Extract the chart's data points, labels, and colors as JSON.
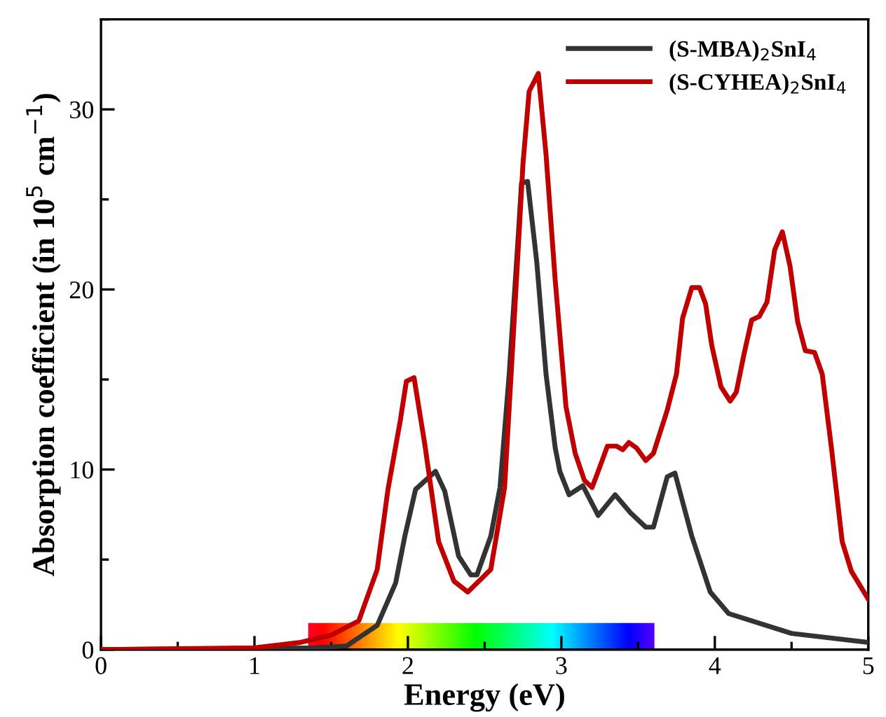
{
  "chart_data": {
    "type": "line",
    "xlabel": "Energy (eV)",
    "ylabel": "Absorption coefficient (in 10$^{5}$ cm$^{−1}$)",
    "xlim": [
      0,
      5
    ],
    "ylim": [
      0,
      35
    ],
    "xticks": [
      0,
      1,
      2,
      3,
      4,
      5
    ],
    "yticks": [
      0,
      10,
      20,
      30
    ],
    "grid": false,
    "legend": "top right",
    "marker": "none",
    "line_style": "solid",
    "series": [
      {
        "name": "(S-MBA)$_{2}$SnI$_{4}$",
        "color": "#333333",
        "x": [
          0,
          1.0,
          1.4,
          1.6,
          1.8,
          1.92,
          1.98,
          2.05,
          2.18,
          2.24,
          2.33,
          2.41,
          2.45,
          2.54,
          2.6,
          2.66,
          2.72,
          2.74,
          2.78,
          2.84,
          2.9,
          2.96,
          2.99,
          3.05,
          3.14,
          3.24,
          3.35,
          3.45,
          3.55,
          3.6,
          3.69,
          3.74,
          3.85,
          3.97,
          4.09,
          4.5,
          5.0
        ],
        "values": [
          0,
          0.05,
          0.1,
          0.2,
          1.35,
          3.7,
          6.3,
          8.9,
          9.9,
          8.8,
          5.2,
          4.15,
          4.15,
          6.3,
          9.0,
          15.3,
          23.1,
          25.9,
          26.0,
          21.5,
          15.3,
          11.2,
          9.9,
          8.6,
          9.1,
          7.45,
          8.6,
          7.6,
          6.8,
          6.8,
          9.6,
          9.8,
          6.3,
          3.2,
          2.0,
          0.9,
          0.4
        ]
      },
      {
        "name": "(S-CYHEA)$_{2}$SnI$_{4}$",
        "color": "#c00000",
        "x": [
          0,
          1.0,
          1.3,
          1.5,
          1.68,
          1.8,
          1.87,
          1.95,
          1.99,
          2.04,
          2.11,
          2.2,
          2.3,
          2.39,
          2.48,
          2.54,
          2.63,
          2.69,
          2.75,
          2.79,
          2.85,
          2.9,
          2.96,
          3.03,
          3.09,
          3.15,
          3.2,
          3.24,
          3.3,
          3.36,
          3.4,
          3.44,
          3.49,
          3.55,
          3.6,
          3.69,
          3.75,
          3.79,
          3.85,
          3.9,
          3.94,
          3.98,
          4.04,
          4.1,
          4.14,
          4.19,
          4.24,
          4.29,
          4.34,
          4.39,
          4.44,
          4.49,
          4.54,
          4.59,
          4.65,
          4.7,
          4.76,
          4.83,
          4.89,
          5.0
        ],
        "values": [
          0,
          0.1,
          0.4,
          0.8,
          1.6,
          4.45,
          8.9,
          12.7,
          14.9,
          15.1,
          11.4,
          6.0,
          3.8,
          3.2,
          3.95,
          4.45,
          9.0,
          17.9,
          27.0,
          31.0,
          32.0,
          27.5,
          20.5,
          13.5,
          10.9,
          9.4,
          9.0,
          9.9,
          11.3,
          11.3,
          11.1,
          11.5,
          11.2,
          10.5,
          10.9,
          13.3,
          15.3,
          18.4,
          20.1,
          20.1,
          19.2,
          16.9,
          14.6,
          13.8,
          14.3,
          16.4,
          18.3,
          18.5,
          19.3,
          22.2,
          23.2,
          21.3,
          18.2,
          16.6,
          16.5,
          15.3,
          11.2,
          6.0,
          4.35,
          2.8
        ]
      }
    ]
  }
}
